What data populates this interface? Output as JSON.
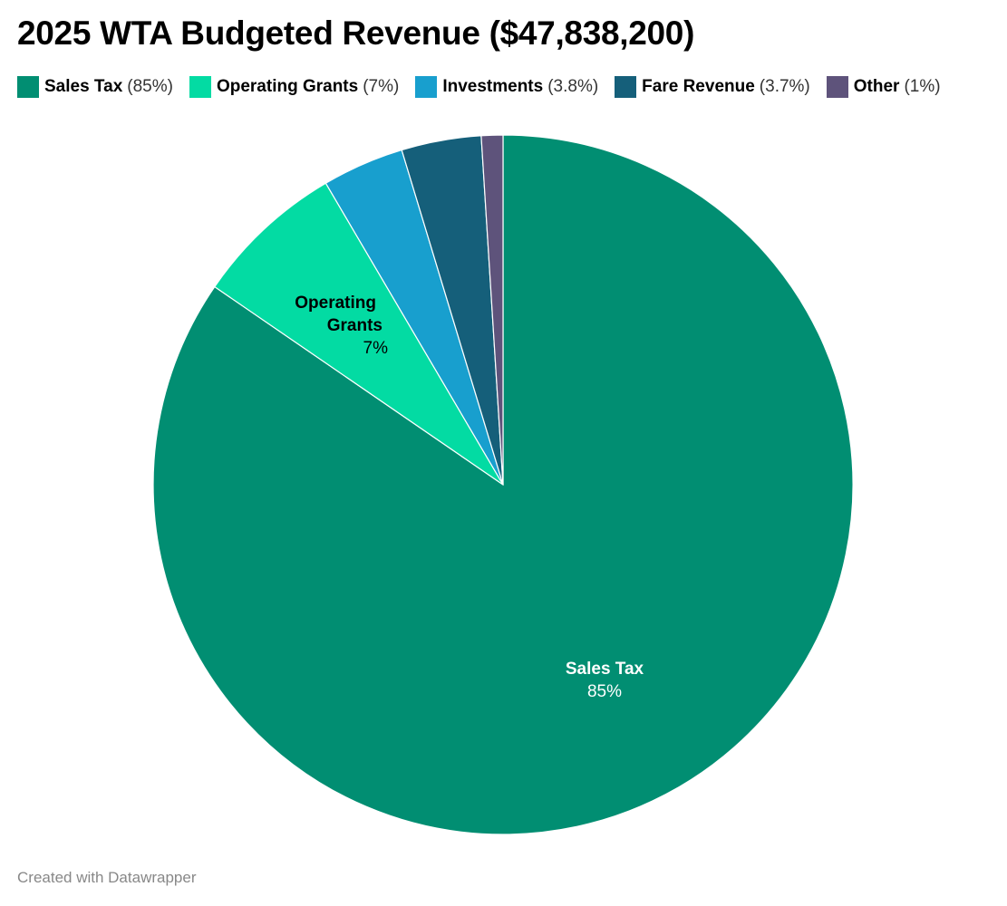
{
  "title": "2025 WTA Budgeted Revenue ($47,838,200)",
  "footer": "Created with Datawrapper",
  "chart_data": {
    "type": "pie",
    "title": "2025 WTA Budgeted Revenue ($47,838,200)",
    "start": "top",
    "direction": "clockwise",
    "legend_position": "top",
    "slices": [
      {
        "name": "Sales Tax",
        "value": 85,
        "pct_label": "(85%)",
        "label_line1": "Sales Tax",
        "label_line2": "",
        "label_value": "85%",
        "color": "#018e72",
        "text_color": "#ffffff",
        "show_label": true
      },
      {
        "name": "Operating Grants",
        "value": 7,
        "pct_label": "(7%)",
        "label_line1": "Operating",
        "label_line2": "Grants",
        "label_value": "7%",
        "color": "#03dba3",
        "text_color": "#000000",
        "show_label": true
      },
      {
        "name": "Investments",
        "value": 3.8,
        "pct_label": "(3.8%)",
        "color": "#189fce",
        "show_label": false
      },
      {
        "name": "Fare Revenue",
        "value": 3.7,
        "pct_label": "(3.7%)",
        "color": "#155f7a",
        "show_label": false
      },
      {
        "name": "Other",
        "value": 1,
        "pct_label": "(1%)",
        "color": "#5e537b",
        "show_label": false
      }
    ]
  }
}
